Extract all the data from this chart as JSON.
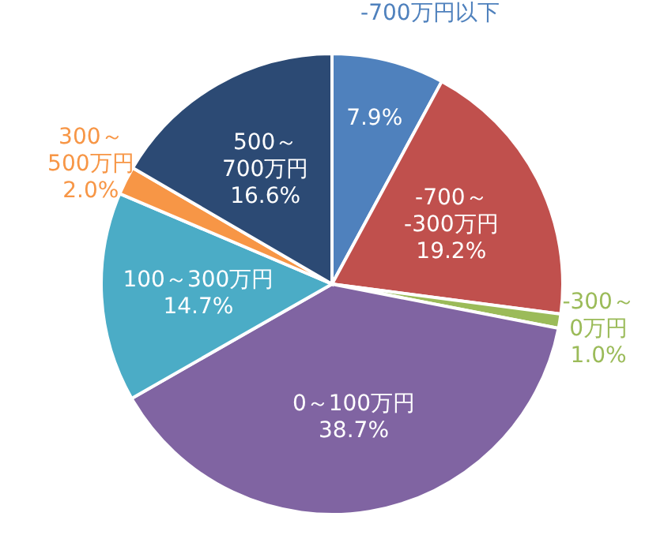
{
  "chart_data": {
    "type": "pie",
    "categories": [
      "-700万円以下",
      "-700～\n-300万円",
      "-300～\n0万円",
      "0～100万円",
      "100～300万円",
      "300～\n500万円",
      "500～\n700万円"
    ],
    "values": [
      7.9,
      19.2,
      1.0,
      38.7,
      14.7,
      2.0,
      16.6
    ],
    "value_labels": [
      "7.9%",
      "19.2%",
      "1.0%",
      "38.7%",
      "14.7%",
      "2.0%",
      "16.6%"
    ],
    "colors": [
      "#4f81bd",
      "#c0504d",
      "#9bbb59",
      "#8064a2",
      "#4bacc6",
      "#f79646",
      "#2c4a74"
    ]
  }
}
